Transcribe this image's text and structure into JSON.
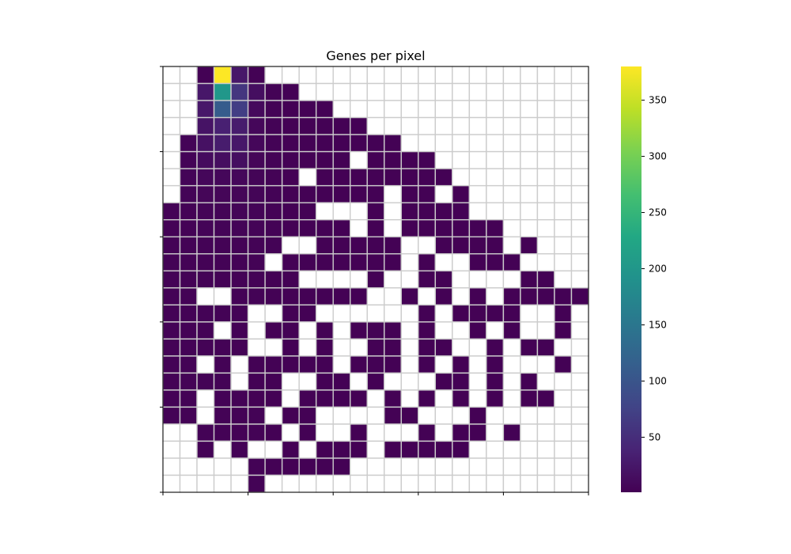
{
  "chart_data": {
    "type": "heatmap",
    "title": "Genes per pixel",
    "xlabel": "",
    "ylabel": "",
    "n_cols": 25,
    "n_rows": 25,
    "grid": true,
    "colormap": "viridis",
    "missing_color": "#ffffff",
    "grid_color": "#cccccc",
    "colorbar": {
      "min": 1,
      "max": 380,
      "ticks": [
        50,
        100,
        150,
        200,
        250,
        300,
        350
      ],
      "tick_labels": [
        "50",
        "100",
        "150",
        "200",
        "250",
        "300",
        "350"
      ]
    },
    "cells": [
      [
        -1,
        -1,
        2,
        380,
        25,
        2,
        -1,
        -1,
        -1,
        -1,
        -1,
        -1,
        -1,
        -1,
        -1,
        -1,
        -1,
        -1,
        -1,
        -1,
        -1,
        -1,
        -1,
        -1,
        -1
      ],
      [
        -1,
        -1,
        25,
        200,
        60,
        15,
        3,
        2,
        -1,
        -1,
        -1,
        -1,
        -1,
        -1,
        -1,
        -1,
        -1,
        -1,
        -1,
        -1,
        -1,
        -1,
        -1,
        -1,
        -1
      ],
      [
        -1,
        -1,
        25,
        110,
        70,
        10,
        3,
        2,
        2,
        2,
        -1,
        -1,
        -1,
        -1,
        -1,
        -1,
        -1,
        -1,
        -1,
        -1,
        -1,
        -1,
        -1,
        -1,
        -1
      ],
      [
        -1,
        -1,
        20,
        35,
        30,
        8,
        3,
        2,
        2,
        2,
        2,
        2,
        -1,
        -1,
        -1,
        -1,
        -1,
        -1,
        -1,
        -1,
        -1,
        -1,
        -1,
        -1,
        -1
      ],
      [
        -1,
        4,
        18,
        30,
        25,
        8,
        3,
        2,
        2,
        2,
        2,
        2,
        2,
        2,
        -1,
        -1,
        -1,
        -1,
        -1,
        -1,
        -1,
        -1,
        -1,
        -1,
        -1
      ],
      [
        -1,
        4,
        12,
        15,
        15,
        6,
        3,
        2,
        2,
        2,
        2,
        -1,
        2,
        2,
        2,
        2,
        -1,
        -1,
        -1,
        -1,
        -1,
        -1,
        -1,
        -1,
        -1
      ],
      [
        -1,
        4,
        8,
        8,
        8,
        5,
        3,
        2,
        -1,
        2,
        2,
        2,
        2,
        2,
        2,
        2,
        2,
        -1,
        -1,
        -1,
        -1,
        -1,
        -1,
        -1,
        -1
      ],
      [
        -1,
        4,
        6,
        6,
        6,
        5,
        3,
        2,
        2,
        2,
        2,
        2,
        2,
        -1,
        2,
        2,
        -1,
        2,
        -1,
        -1,
        -1,
        -1,
        -1,
        -1,
        -1
      ],
      [
        3,
        3,
        5,
        5,
        5,
        4,
        3,
        2,
        2,
        -1,
        -1,
        -1,
        2,
        -1,
        2,
        2,
        2,
        2,
        -1,
        -1,
        -1,
        -1,
        -1,
        -1,
        -1
      ],
      [
        3,
        3,
        4,
        4,
        4,
        4,
        3,
        2,
        2,
        2,
        2,
        -1,
        2,
        -1,
        2,
        2,
        2,
        2,
        2,
        2,
        -1,
        -1,
        -1,
        -1,
        -1
      ],
      [
        3,
        3,
        3,
        3,
        3,
        3,
        3,
        -1,
        -1,
        2,
        2,
        2,
        2,
        2,
        -1,
        -1,
        2,
        2,
        2,
        2,
        -1,
        2,
        -1,
        -1,
        -1
      ],
      [
        3,
        3,
        3,
        3,
        3,
        3,
        -1,
        2,
        2,
        2,
        2,
        2,
        2,
        2,
        -1,
        2,
        -1,
        -1,
        2,
        2,
        2,
        -1,
        -1,
        -1,
        -1
      ],
      [
        3,
        3,
        3,
        3,
        3,
        3,
        2,
        2,
        -1,
        -1,
        -1,
        -1,
        2,
        -1,
        -1,
        2,
        2,
        -1,
        -1,
        -1,
        -1,
        2,
        2,
        -1,
        -1
      ],
      [
        3,
        3,
        -1,
        -1,
        3,
        3,
        2,
        2,
        2,
        2,
        2,
        2,
        -1,
        -1,
        2,
        -1,
        2,
        -1,
        2,
        -1,
        2,
        2,
        2,
        2,
        2
      ],
      [
        3,
        3,
        3,
        3,
        3,
        -1,
        -1,
        2,
        2,
        -1,
        -1,
        -1,
        -1,
        -1,
        -1,
        2,
        -1,
        2,
        2,
        2,
        2,
        -1,
        -1,
        2,
        -1
      ],
      [
        3,
        3,
        3,
        -1,
        3,
        -1,
        2,
        2,
        -1,
        2,
        -1,
        2,
        2,
        2,
        -1,
        2,
        -1,
        -1,
        2,
        -1,
        2,
        -1,
        -1,
        2,
        -1
      ],
      [
        3,
        3,
        3,
        3,
        3,
        -1,
        -1,
        2,
        -1,
        2,
        -1,
        -1,
        2,
        2,
        -1,
        2,
        2,
        -1,
        -1,
        2,
        -1,
        2,
        2,
        -1,
        -1
      ],
      [
        3,
        3,
        -1,
        3,
        -1,
        2,
        2,
        2,
        2,
        2,
        -1,
        2,
        2,
        2,
        -1,
        2,
        -1,
        2,
        -1,
        2,
        -1,
        -1,
        -1,
        2,
        -1
      ],
      [
        3,
        3,
        3,
        3,
        -1,
        2,
        2,
        -1,
        -1,
        2,
        2,
        -1,
        2,
        -1,
        -1,
        -1,
        2,
        2,
        -1,
        2,
        -1,
        2,
        -1,
        -1,
        -1
      ],
      [
        3,
        3,
        -1,
        3,
        3,
        2,
        2,
        -1,
        2,
        2,
        2,
        2,
        -1,
        2,
        -1,
        2,
        -1,
        2,
        -1,
        2,
        -1,
        2,
        2,
        -1,
        -1
      ],
      [
        3,
        3,
        -1,
        3,
        3,
        3,
        -1,
        2,
        2,
        -1,
        -1,
        -1,
        -1,
        2,
        2,
        -1,
        -1,
        -1,
        2,
        -1,
        -1,
        -1,
        -1,
        -1,
        -1
      ],
      [
        -1,
        -1,
        3,
        3,
        3,
        3,
        2,
        -1,
        2,
        -1,
        -1,
        2,
        -1,
        -1,
        -1,
        2,
        -1,
        2,
        2,
        -1,
        2,
        -1,
        -1,
        -1,
        -1
      ],
      [
        -1,
        -1,
        3,
        -1,
        3,
        -1,
        -1,
        2,
        -1,
        2,
        2,
        2,
        -1,
        2,
        2,
        2,
        2,
        2,
        -1,
        -1,
        -1,
        -1,
        -1,
        -1,
        -1
      ],
      [
        -1,
        -1,
        -1,
        -1,
        -1,
        3,
        2,
        2,
        2,
        2,
        2,
        -1,
        -1,
        -1,
        -1,
        -1,
        -1,
        -1,
        -1,
        -1,
        -1,
        -1,
        -1,
        -1,
        -1
      ],
      [
        -1,
        -1,
        -1,
        -1,
        -1,
        3,
        -1,
        -1,
        -1,
        -1,
        -1,
        -1,
        -1,
        -1,
        -1,
        -1,
        -1,
        -1,
        -1,
        -1,
        -1,
        -1,
        -1,
        -1,
        -1
      ]
    ]
  }
}
